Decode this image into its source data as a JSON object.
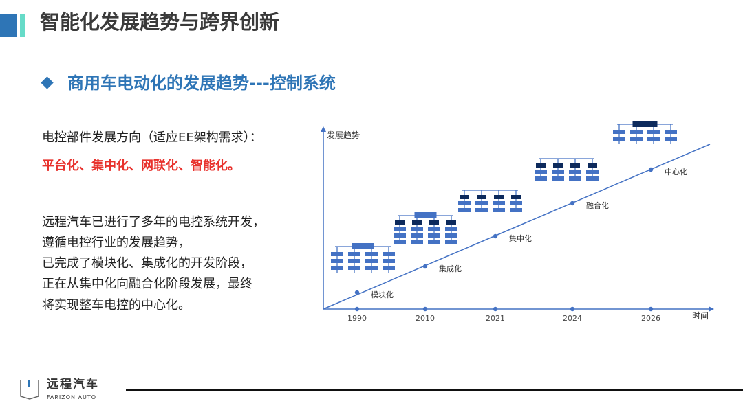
{
  "header": {
    "title": "智能化发展趋势与跨界创新",
    "subtitle": "商用车电动化的发展趋势---控制系统",
    "accent": "#2e75b6",
    "accent2": "#66dbc8"
  },
  "body": {
    "intro": "电控部件发展方向（适应EE架构需求）：",
    "highlight": "平台化、集中化、网联化、智能化。",
    "paragraph": [
      "远程汽车已进行了多年的电控系统开发，",
      "遵循电控行业的发展趋势，",
      "已完成了模块化、集成化的开发阶段，",
      "正在从集中化向融合化阶段发展，最终",
      "将实现整车电控的中心化。"
    ]
  },
  "diagram": {
    "y_axis_label": "发展趋势",
    "x_axis_label": "时间",
    "stages": [
      {
        "year": "1990",
        "label": "模块化"
      },
      {
        "year": "2010",
        "label": "集成化"
      },
      {
        "year": "2021",
        "label": "集中化"
      },
      {
        "year": "2024",
        "label": "融合化"
      },
      {
        "year": "2026",
        "label": "中心化"
      }
    ],
    "colors": {
      "line": "#4472c4",
      "block": "#4472c4",
      "dark": "#0d2a5c",
      "arrow": "#c00000"
    }
  },
  "footer": {
    "logo_cn": "远程汽车",
    "logo_en": "FARIZON AUTO"
  }
}
